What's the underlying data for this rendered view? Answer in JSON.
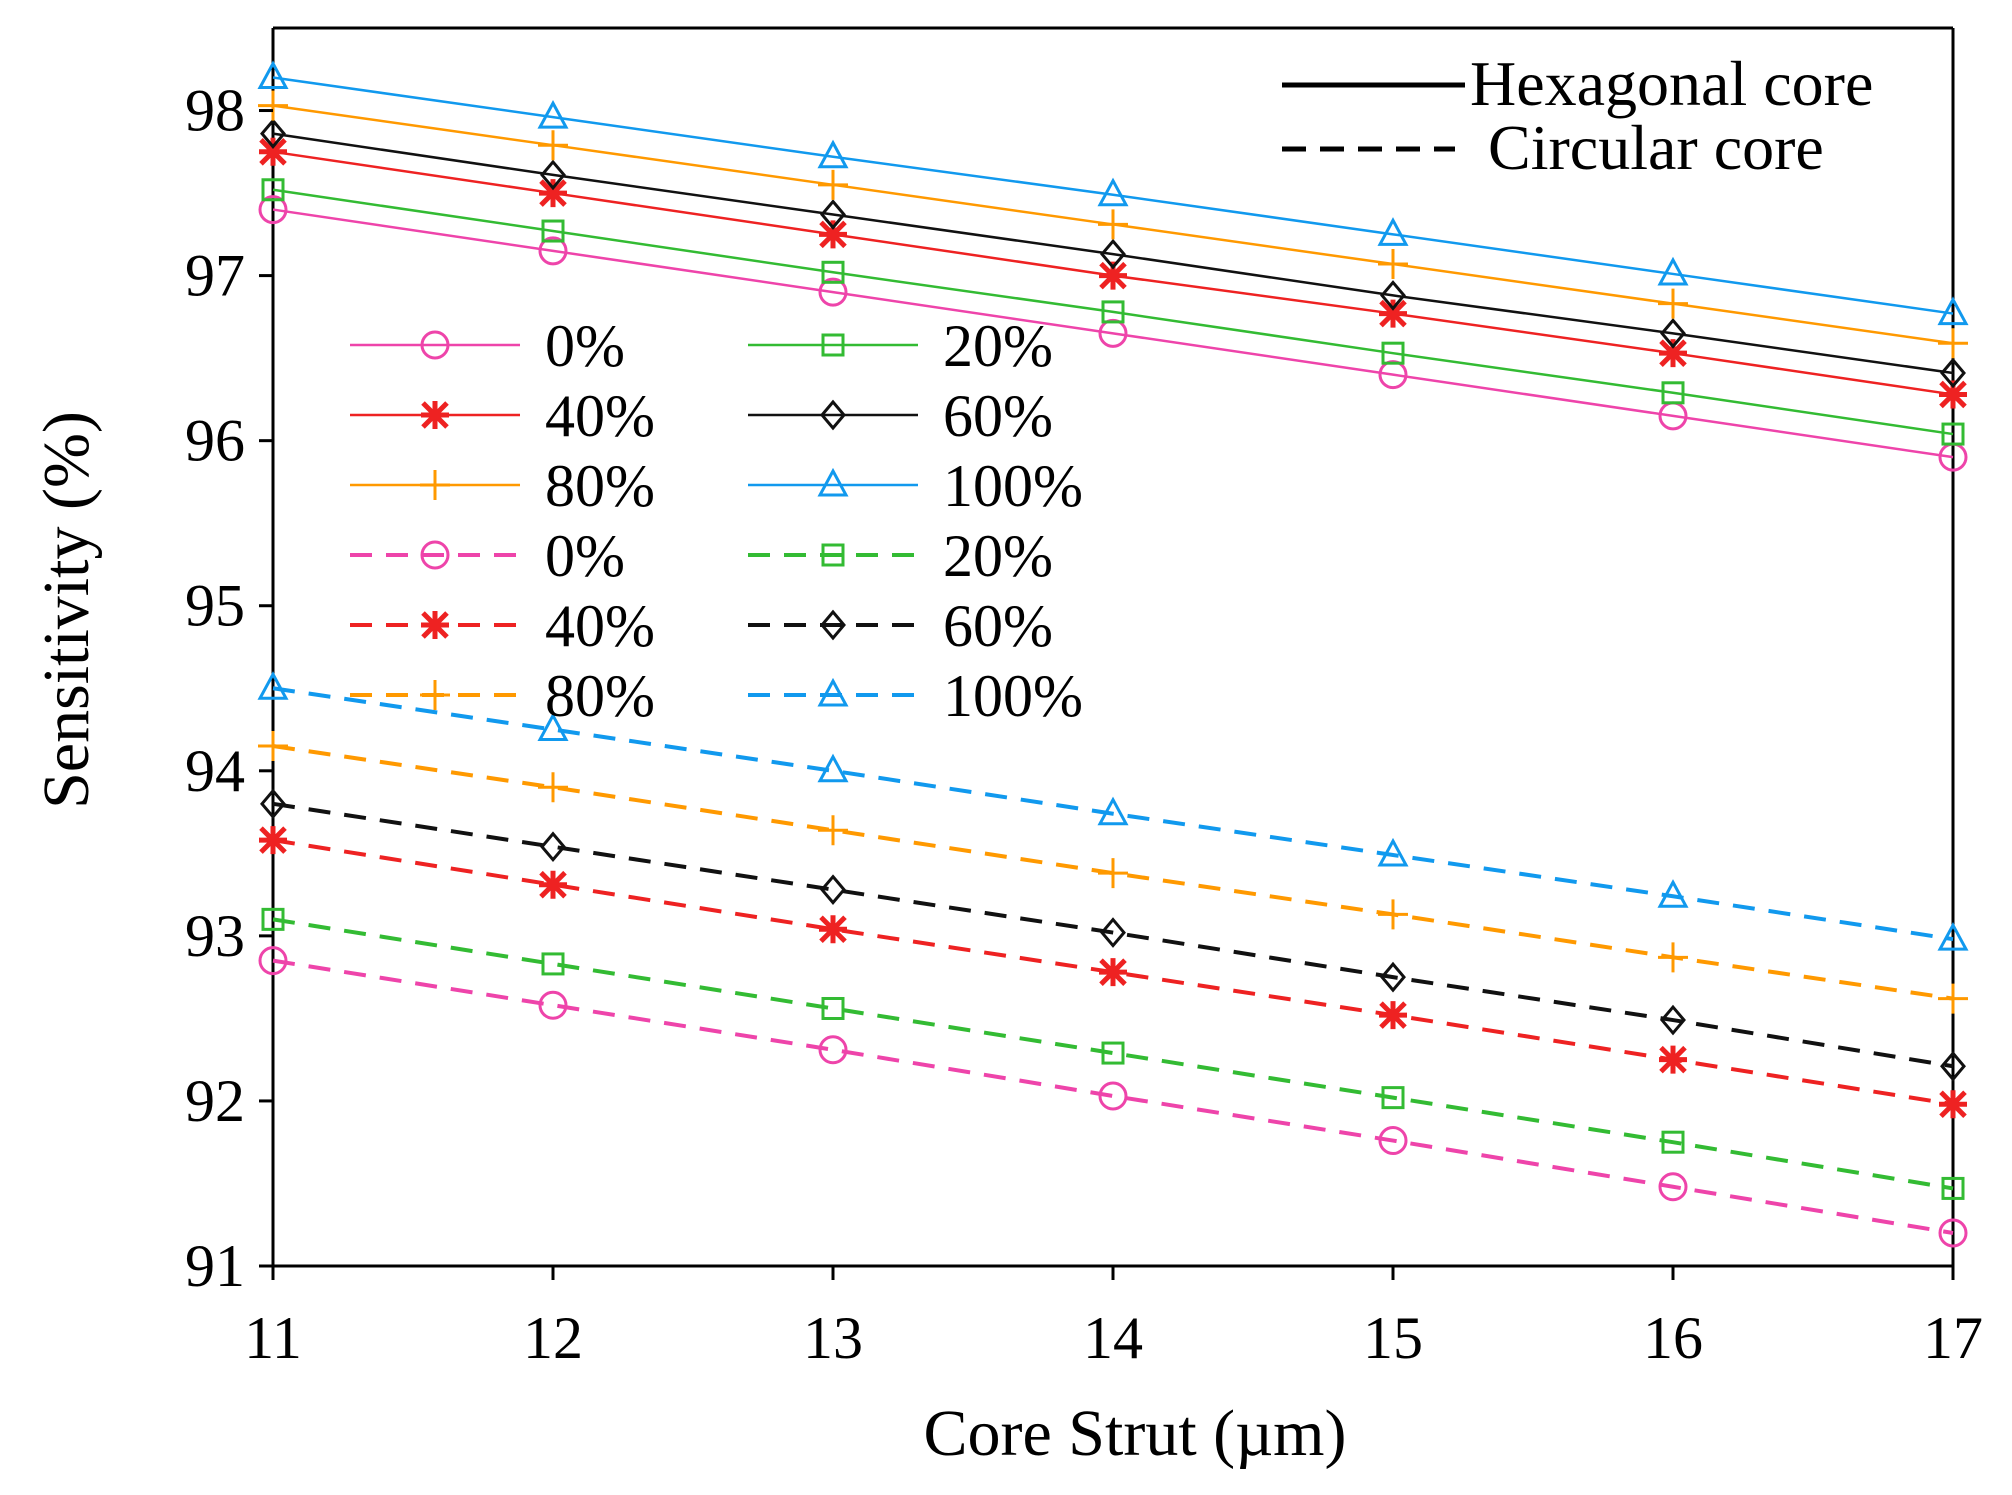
{
  "chart_data": {
    "type": "line",
    "title": "",
    "xlabel": "Core Strut (µm)",
    "ylabel": "Sensitivity (%)",
    "xlim": [
      11,
      17
    ],
    "ylim": [
      91,
      98.5
    ],
    "x": [
      11,
      12,
      13,
      14,
      15,
      16,
      17
    ],
    "xticks": [
      "11",
      "12",
      "13",
      "14",
      "15",
      "16",
      "17"
    ],
    "yticks": [
      "91",
      "92",
      "93",
      "94",
      "95",
      "96",
      "97",
      "98"
    ],
    "grid": false,
    "core_legend": [
      {
        "label": "Hexagonal core",
        "style": "solid"
      },
      {
        "label": "Circular core",
        "style": "dashed"
      }
    ],
    "series": [
      {
        "name": "0%",
        "core": "Hexagonal core",
        "style": "solid",
        "marker": "circle",
        "color": "#ee44aa",
        "values": [
          97.4,
          97.15,
          96.9,
          96.65,
          96.4,
          96.15,
          95.9
        ]
      },
      {
        "name": "20%",
        "core": "Hexagonal core",
        "style": "solid",
        "marker": "square",
        "color": "#33bb33",
        "values": [
          97.52,
          97.27,
          97.02,
          96.78,
          96.53,
          96.29,
          96.04
        ]
      },
      {
        "name": "40%",
        "core": "Hexagonal core",
        "style": "solid",
        "marker": "asterisk",
        "color": "#ee2222",
        "values": [
          97.75,
          97.5,
          97.25,
          97.0,
          96.77,
          96.53,
          96.28
        ]
      },
      {
        "name": "60%",
        "core": "Hexagonal core",
        "style": "solid",
        "marker": "diamond",
        "color": "#111111",
        "values": [
          97.86,
          97.61,
          97.37,
          97.13,
          96.88,
          96.65,
          96.41
        ]
      },
      {
        "name": "80%",
        "core": "Hexagonal core",
        "style": "solid",
        "marker": "plus",
        "color": "#ff9900",
        "values": [
          98.03,
          97.79,
          97.55,
          97.31,
          97.07,
          96.83,
          96.59
        ]
      },
      {
        "name": "100%",
        "core": "Hexagonal core",
        "style": "solid",
        "marker": "triangle",
        "color": "#1199ee",
        "values": [
          98.2,
          97.96,
          97.72,
          97.49,
          97.25,
          97.01,
          96.77
        ]
      },
      {
        "name": "0%",
        "core": "Circular core",
        "style": "dashed",
        "marker": "circle",
        "color": "#ee44aa",
        "values": [
          92.85,
          92.58,
          92.31,
          92.03,
          91.76,
          91.48,
          91.2
        ]
      },
      {
        "name": "20%",
        "core": "Circular core",
        "style": "dashed",
        "marker": "square",
        "color": "#33bb33",
        "values": [
          93.1,
          92.83,
          92.56,
          92.29,
          92.02,
          91.75,
          91.47
        ]
      },
      {
        "name": "40%",
        "core": "Circular core",
        "style": "dashed",
        "marker": "asterisk",
        "color": "#ee2222",
        "values": [
          93.58,
          93.31,
          93.04,
          92.78,
          92.52,
          92.25,
          91.98
        ]
      },
      {
        "name": "60%",
        "core": "Circular core",
        "style": "dashed",
        "marker": "diamond",
        "color": "#111111",
        "values": [
          93.8,
          93.54,
          93.28,
          93.02,
          92.75,
          92.49,
          92.21
        ]
      },
      {
        "name": "80%",
        "core": "Circular core",
        "style": "dashed",
        "marker": "plus",
        "color": "#ff9900",
        "values": [
          94.15,
          93.9,
          93.64,
          93.38,
          93.13,
          92.87,
          92.62
        ]
      },
      {
        "name": "100%",
        "core": "Circular core",
        "style": "dashed",
        "marker": "triangle",
        "color": "#1199ee",
        "values": [
          94.5,
          94.25,
          94.0,
          93.74,
          93.49,
          93.24,
          92.98
        ]
      }
    ]
  }
}
